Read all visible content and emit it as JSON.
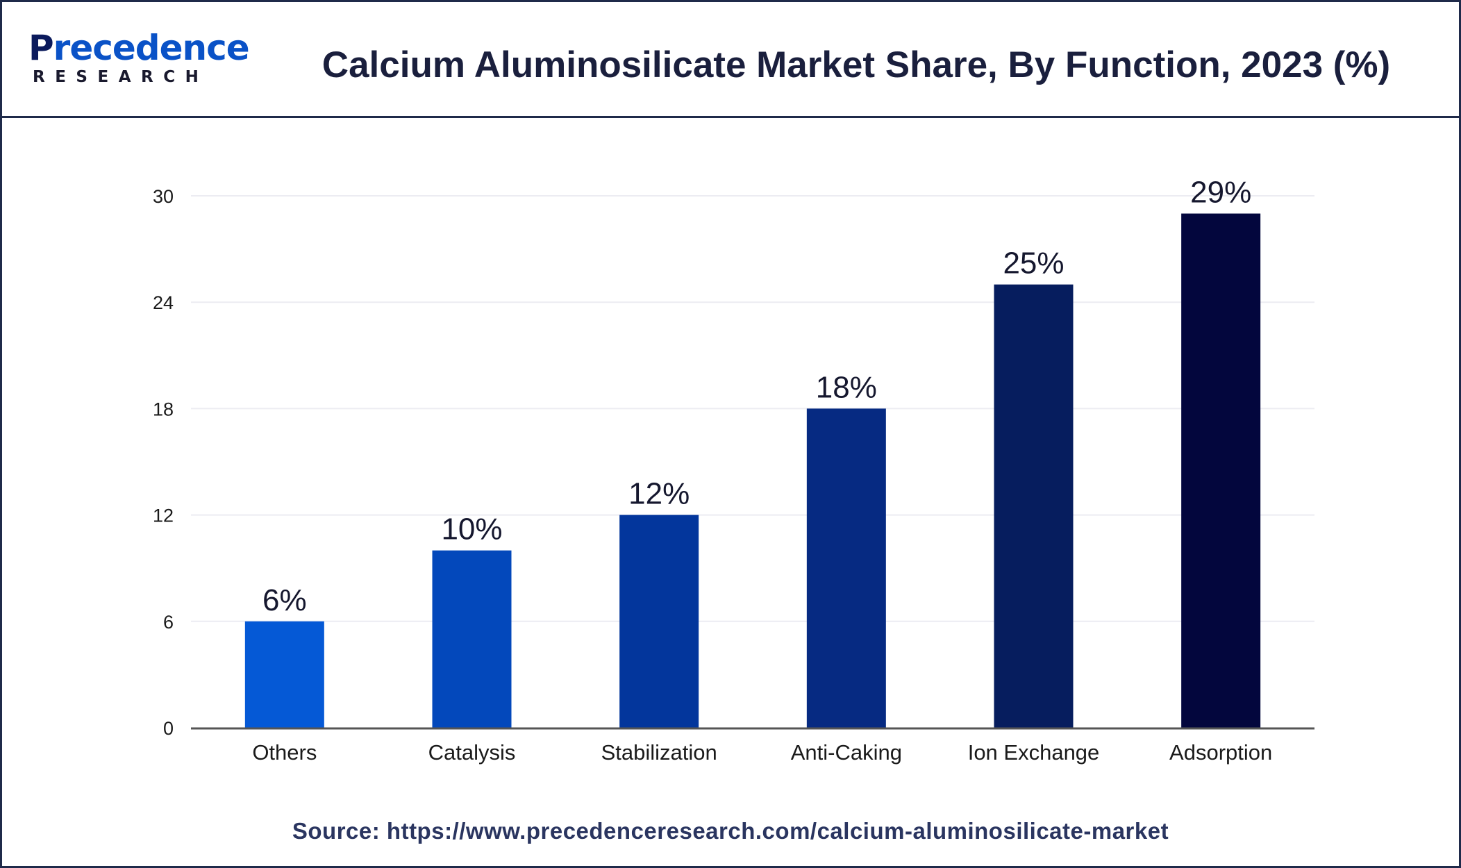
{
  "header": {
    "logo_main": "recedence",
    "logo_initial": "P",
    "logo_sub": "RESEARCH",
    "title": "Calcium Aluminosilicate Market Share, By Function, 2023 (%)"
  },
  "footer": {
    "source": "Source: https://www.precedenceresearch.com/calcium-aluminosilicate-market"
  },
  "colors": {
    "frame": "#1f2a4a",
    "bars": [
      "#0559d6",
      "#0348bb",
      "#03369c",
      "#062a82",
      "#061d5e",
      "#03063d"
    ],
    "axis": "#555555",
    "grid": "#ececf2"
  },
  "chart_data": {
    "type": "bar",
    "title": "Calcium Aluminosilicate Market Share, By Function, 2023 (%)",
    "xlabel": "",
    "ylabel": "",
    "categories": [
      "Others",
      "Catalysis",
      "Stabilization",
      "Anti-Caking",
      "Ion Exchange",
      "Adsorption"
    ],
    "values": [
      6,
      10,
      12,
      18,
      25,
      29
    ],
    "data_labels": [
      "6%",
      "10%",
      "12%",
      "18%",
      "25%",
      "29%"
    ],
    "yticks": [
      "0",
      "6",
      "12",
      "18",
      "24",
      "30"
    ],
    "ylim": [
      0,
      30
    ],
    "grid": true,
    "legend": "none"
  }
}
